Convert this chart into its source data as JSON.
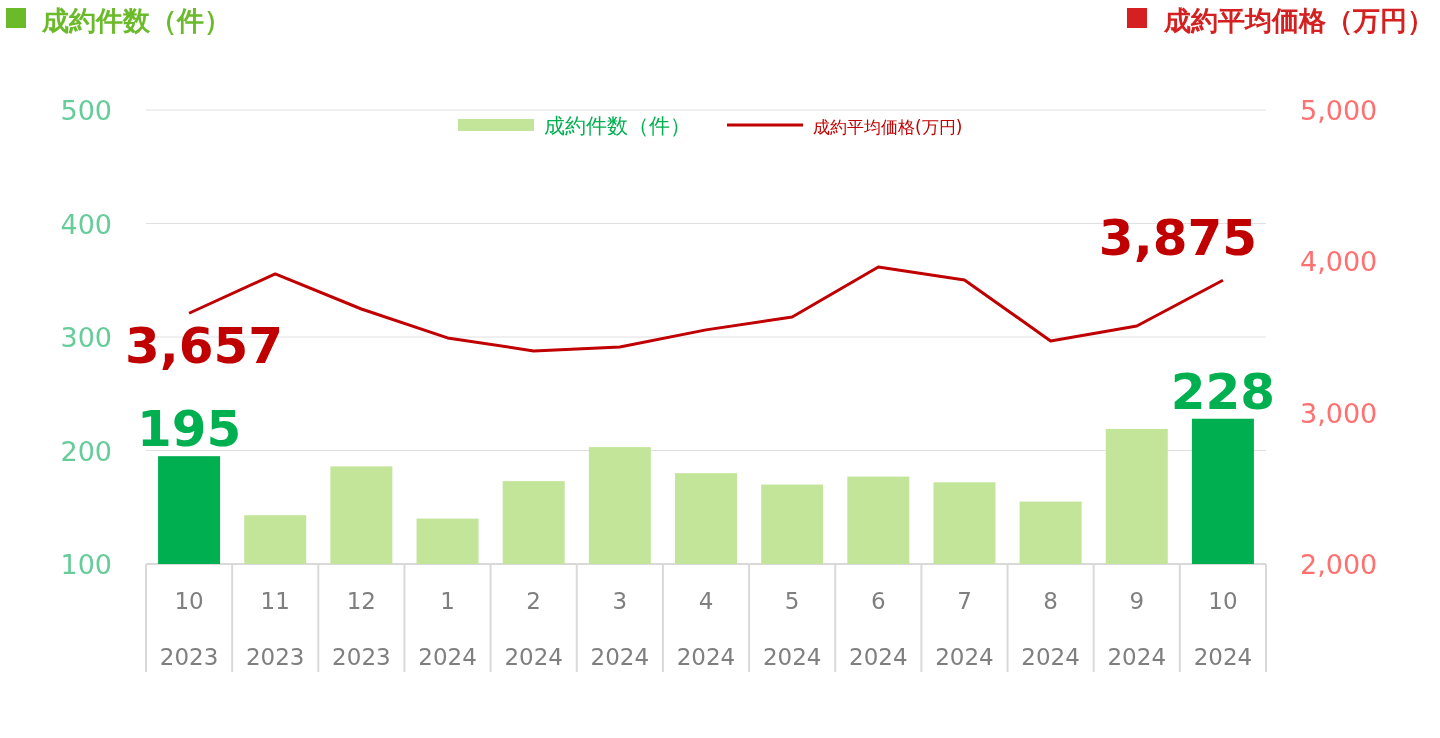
{
  "chart_data": {
    "type": "bar",
    "ylabel": "成約件数（件）",
    "y2label": "成約平均価格（万円）",
    "categories": [
      "10\n2023",
      "11\n2023",
      "12\n2023",
      "1\n2024",
      "2\n2024",
      "3\n2024",
      "4\n2024",
      "5\n2024",
      "6\n2024",
      "7\n2024",
      "8\n2024",
      "9\n2024",
      "10\n2024"
    ],
    "series": [
      {
        "name": "成約件数（件）",
        "colors": [
          "#00b050",
          "#c3e59a",
          "#c3e59a",
          "#c3e59a",
          "#c3e59a",
          "#c3e59a",
          "#c3e59a",
          "#c3e59a",
          "#c3e59a",
          "#c3e59a",
          "#c3e59a",
          "#c3e59a",
          "#00b050"
        ],
        "values": [
          195,
          143,
          186,
          140,
          173,
          203,
          180,
          170,
          177,
          172,
          155,
          219,
          228
        ],
        "value_labels": [
          "195",
          null,
          null,
          null,
          null,
          null,
          null,
          null,
          null,
          null,
          null,
          null,
          "228"
        ]
      },
      {
        "name": "成約平均価格(万円)",
        "type": "line",
        "axis": "y2",
        "color": "#c00000",
        "values": [
          3657,
          3917,
          3685,
          3494,
          3408,
          3434,
          3547,
          3632,
          3963,
          3877,
          3474,
          3573,
          3875
        ],
        "value_labels": [
          "3,657",
          null,
          null,
          null,
          null,
          null,
          null,
          null,
          null,
          null,
          null,
          null,
          "3,875"
        ]
      }
    ],
    "ylim": [
      100,
      500
    ],
    "yticks": [
      100,
      200,
      300,
      400,
      500
    ],
    "y2lim": [
      2000,
      5000
    ],
    "y2ticks": [
      {
        "value": 2000,
        "label": "2,000"
      },
      {
        "value": 3000,
        "label": "3,000"
      },
      {
        "value": 4000,
        "label": "4,000"
      },
      {
        "value": 5000,
        "label": "5,000"
      }
    ],
    "grid": "y",
    "legend": "top"
  }
}
